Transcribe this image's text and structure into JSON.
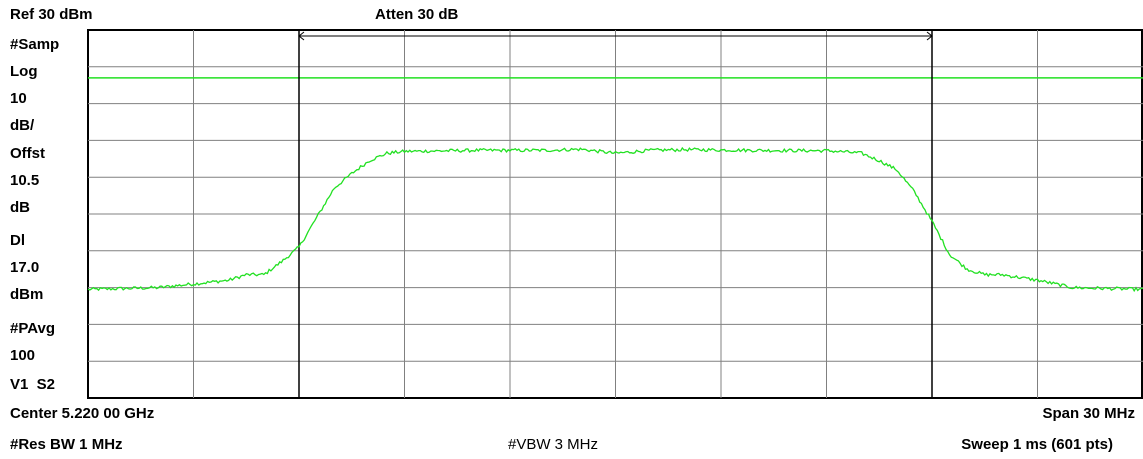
{
  "header": {
    "ref_level": "Ref 30 dBm",
    "attenuation": "Atten 30 dB"
  },
  "side_labels": [
    "#Samp",
    "Log",
    "10",
    "dB/",
    "Offst",
    "10.5",
    "dB",
    "Dl",
    "17.0",
    "dBm",
    "#PAvg",
    "100",
    "V1  S2"
  ],
  "footer": {
    "center": "Center 5.220 00 GHz",
    "span": "Span 30 MHz",
    "res_bw": "#Res BW 1 MHz",
    "vbw": "#VBW 3 MHz",
    "sweep": "Sweep 1 ms (601 pts)"
  },
  "colors": {
    "trace": "#22e022",
    "display_line": "#22e022",
    "grid": "#808080",
    "marker": "#000000"
  },
  "chart_data": {
    "type": "line",
    "xlabel": "",
    "ylabel": "",
    "x_unit": "MHz offset from center",
    "xlim": [
      -15,
      15
    ],
    "ylim": [
      -70,
      30
    ],
    "ref_level": 30,
    "scale_db_per_div": 10,
    "display_line": 17.0,
    "grid": true,
    "markers_x": [
      -9,
      9
    ],
    "series": [
      {
        "name": "",
        "x": [
          -15,
          -13,
          -11,
          -10.5,
          -10,
          -9.5,
          -9,
          -8.5,
          -8,
          -7.5,
          -7,
          -6.5,
          -6,
          -4,
          -2,
          -1,
          0,
          1,
          2,
          4,
          6,
          6.5,
          7,
          7.5,
          8,
          8.5,
          9,
          9.5,
          10,
          10.5,
          11,
          12,
          13,
          15
        ],
        "y": [
          -40.5,
          -40,
          -38,
          -36.5,
          -36.5,
          -33,
          -29,
          -21,
          -13,
          -9,
          -5.5,
          -3.5,
          -3,
          -2.7,
          -2.7,
          -2.4,
          -3.5,
          -2.7,
          -2.5,
          -2.7,
          -2.8,
          -3.1,
          -3.5,
          -5.5,
          -8,
          -14,
          -22,
          -31,
          -35,
          -36.5,
          -36.5,
          -38,
          -40,
          -40.5
        ]
      }
    ]
  }
}
